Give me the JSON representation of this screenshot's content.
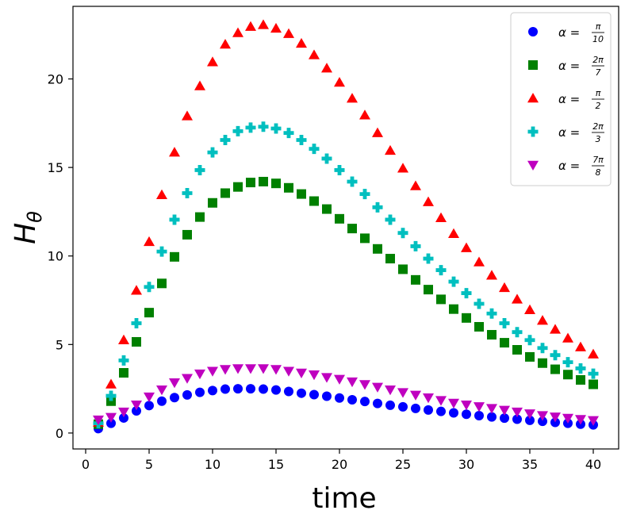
{
  "chart_data": {
    "type": "scatter",
    "title": "",
    "xlabel": "time",
    "ylabel": "H_θ",
    "ylabel_base": "H",
    "ylabel_sub": "θ",
    "xlim": [
      -1,
      42
    ],
    "ylim": [
      -0.9,
      24.1
    ],
    "xticks": [
      0,
      5,
      10,
      15,
      20,
      25,
      30,
      35,
      40
    ],
    "yticks": [
      0,
      5,
      10,
      15,
      20
    ],
    "grid": false,
    "legend_position": "top-right",
    "x": [
      1,
      2,
      3,
      4,
      5,
      6,
      7,
      8,
      9,
      10,
      11,
      12,
      13,
      14,
      15,
      16,
      17,
      18,
      19,
      20,
      21,
      22,
      23,
      24,
      25,
      26,
      27,
      28,
      29,
      30,
      31,
      32,
      33,
      34,
      35,
      36,
      37,
      38,
      39,
      40
    ],
    "series": [
      {
        "name": "α = π/10",
        "legend_prefix": "α = ",
        "frac_num": "π",
        "frac_den": "10",
        "marker": "circle",
        "color": "#0000ff",
        "values": [
          0.25,
          0.55,
          0.85,
          1.25,
          1.55,
          1.8,
          2.0,
          2.15,
          2.3,
          2.4,
          2.48,
          2.5,
          2.5,
          2.48,
          2.43,
          2.35,
          2.25,
          2.17,
          2.08,
          1.98,
          1.88,
          1.78,
          1.67,
          1.57,
          1.48,
          1.39,
          1.3,
          1.22,
          1.14,
          1.06,
          0.98,
          0.91,
          0.84,
          0.78,
          0.72,
          0.66,
          0.6,
          0.55,
          0.5,
          0.46
        ]
      },
      {
        "name": "α = 2π/7",
        "legend_prefix": "α = ",
        "frac_num": "2π",
        "frac_den": "7",
        "marker": "square",
        "color": "#008000",
        "values": [
          0.5,
          1.8,
          3.4,
          5.15,
          6.8,
          8.45,
          9.95,
          11.2,
          12.2,
          13.0,
          13.55,
          13.9,
          14.15,
          14.2,
          14.1,
          13.85,
          13.5,
          13.1,
          12.65,
          12.1,
          11.55,
          11.0,
          10.4,
          9.85,
          9.25,
          8.65,
          8.1,
          7.55,
          7.0,
          6.5,
          6.0,
          5.55,
          5.1,
          4.7,
          4.3,
          3.95,
          3.6,
          3.3,
          3.0,
          2.75
        ]
      },
      {
        "name": "α = π/2",
        "legend_prefix": "α = ",
        "frac_num": "π",
        "frac_den": "2",
        "marker": "triangle-up",
        "color": "#ff0000",
        "values": [
          0.6,
          2.75,
          5.25,
          8.05,
          10.8,
          13.45,
          15.85,
          17.9,
          19.6,
          20.95,
          21.95,
          22.6,
          22.95,
          23.05,
          22.85,
          22.55,
          22.0,
          21.35,
          20.6,
          19.8,
          18.9,
          17.95,
          16.95,
          15.95,
          14.95,
          13.95,
          13.05,
          12.15,
          11.25,
          10.45,
          9.65,
          8.9,
          8.2,
          7.55,
          6.95,
          6.35,
          5.85,
          5.35,
          4.85,
          4.45
        ]
      },
      {
        "name": "α = 2π/3",
        "legend_prefix": "α = ",
        "frac_num": "2π",
        "frac_den": "3",
        "marker": "plus",
        "color": "#00bfbf",
        "values": [
          0.55,
          2.1,
          4.1,
          6.2,
          8.25,
          10.25,
          12.05,
          13.55,
          14.85,
          15.85,
          16.55,
          17.05,
          17.25,
          17.3,
          17.2,
          16.95,
          16.55,
          16.05,
          15.5,
          14.85,
          14.2,
          13.5,
          12.75,
          12.05,
          11.3,
          10.55,
          9.85,
          9.2,
          8.55,
          7.9,
          7.3,
          6.75,
          6.2,
          5.7,
          5.25,
          4.8,
          4.4,
          4.0,
          3.65,
          3.35
        ]
      },
      {
        "name": "α = 7π/8",
        "legend_prefix": "α = ",
        "frac_num": "7π",
        "frac_den": "8",
        "marker": "triangle-down",
        "color": "#bf00bf",
        "values": [
          0.75,
          0.9,
          1.2,
          1.6,
          2.05,
          2.45,
          2.85,
          3.1,
          3.35,
          3.5,
          3.6,
          3.65,
          3.65,
          3.65,
          3.6,
          3.5,
          3.4,
          3.3,
          3.15,
          3.05,
          2.9,
          2.75,
          2.6,
          2.45,
          2.3,
          2.15,
          2.0,
          1.85,
          1.7,
          1.6,
          1.5,
          1.4,
          1.3,
          1.2,
          1.1,
          1.0,
          0.92,
          0.85,
          0.78,
          0.72
        ]
      }
    ]
  }
}
